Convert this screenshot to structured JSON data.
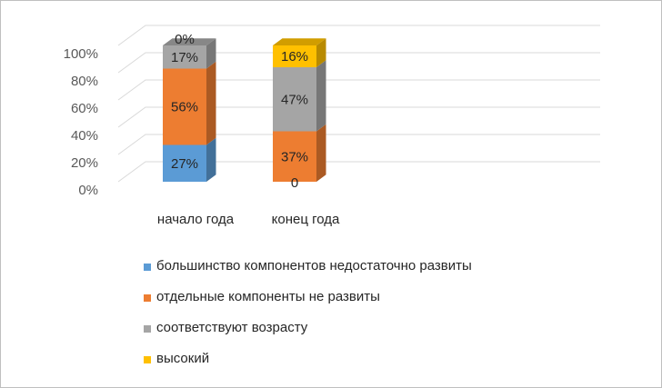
{
  "chart_data": {
    "type": "bar",
    "stacked": true,
    "percent_stacked": true,
    "three_d": true,
    "title": "",
    "xlabel": "",
    "ylabel": "",
    "ylim": [
      0,
      100
    ],
    "yticks": [
      "0%",
      "20%",
      "40%",
      "60%",
      "80%",
      "100%"
    ],
    "grid": true,
    "legend_position": "bottom",
    "categories": [
      "начало года",
      "конец года"
    ],
    "series": [
      {
        "name": "большинство компонентов недостаточно развиты",
        "color": "#5B9BD5",
        "values": [
          27,
          0
        ],
        "labels": [
          "27%",
          "0"
        ]
      },
      {
        "name": "отдельные компоненты не развиты",
        "color": "#ED7D31",
        "values": [
          56,
          37
        ],
        "labels": [
          "56%",
          "37%"
        ]
      },
      {
        "name": "соответствуют возрасту",
        "color": "#A5A5A5",
        "values": [
          17,
          47
        ],
        "labels": [
          "17%",
          "47%"
        ]
      },
      {
        "name": "высокий",
        "color": "#FFC000",
        "values": [
          0,
          16
        ],
        "labels": [
          "0%",
          "16%"
        ]
      }
    ]
  }
}
